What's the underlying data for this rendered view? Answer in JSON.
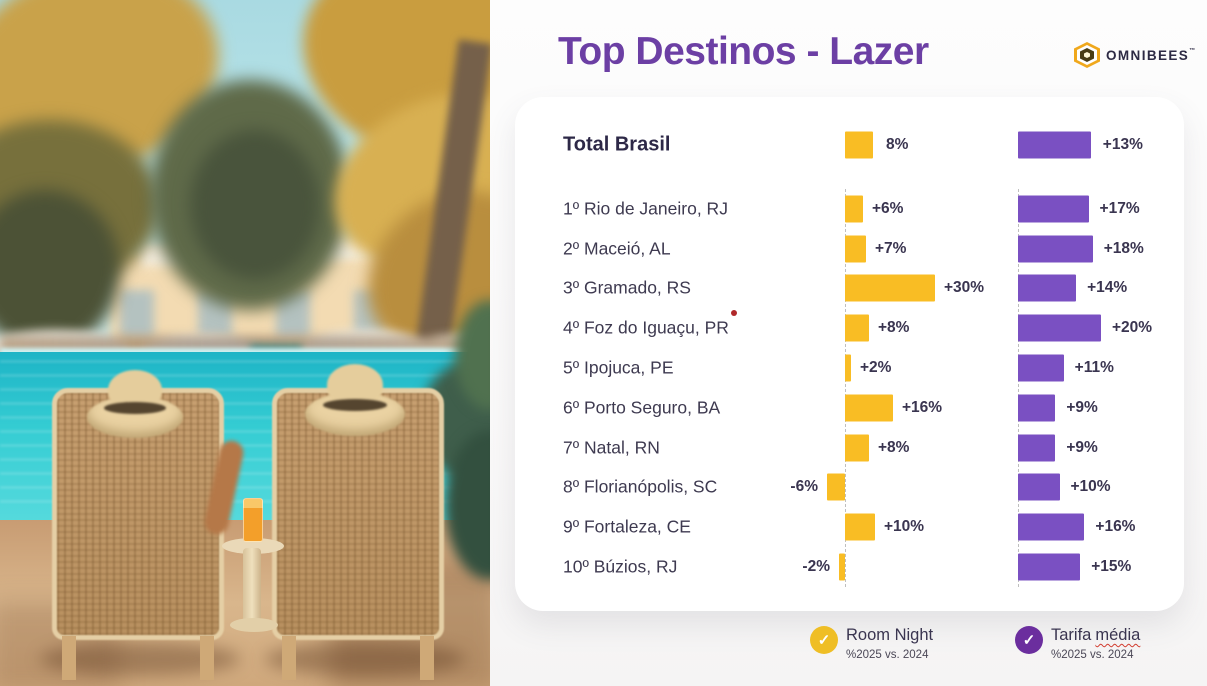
{
  "header": {
    "title_prefix": "Top Destinos - ",
    "title_emphasis": "Lazer",
    "logo_text": "OMNIBEES",
    "logo_tm": "™"
  },
  "chart_data": {
    "type": "bar",
    "orientation": "horizontal",
    "title": "Top Destinos - Lazer",
    "unit": "percent_change_2025_vs_2024",
    "grid": false,
    "legend_position": "bottom",
    "categories": [
      "Total Brasil",
      "1º Rio de Janeiro, RJ",
      "2º Maceió, AL",
      "3º Gramado, RS",
      "4º Foz do Iguaçu, PR",
      "5º Ipojuca, PE",
      "6º Porto Seguro, BA",
      "7º Natal, RN",
      "8º Florianópolis, SC",
      "9º Fortaleza, CE",
      "10º Búzios, RJ"
    ],
    "series": [
      {
        "name": "Room Night",
        "sublabel": "%2025 vs. 2024",
        "color": "#F9BD24",
        "values": [
          8,
          6,
          7,
          30,
          8,
          2,
          16,
          8,
          -6,
          10,
          -2
        ],
        "labels": [
          "8%",
          "+6%",
          "+7%",
          "+30%",
          "+8%",
          "+2%",
          "+16%",
          "+8%",
          "-6%",
          "+10%",
          "-2%"
        ]
      },
      {
        "name": "Tarifa média",
        "sublabel": "%2025 vs. 2024",
        "color": "#7A50C2",
        "values": [
          13,
          17,
          18,
          14,
          20,
          11,
          9,
          9,
          10,
          16,
          15
        ],
        "labels": [
          "+13%",
          "+17%",
          "+18%",
          "+14%",
          "+20%",
          "+11%",
          "+9%",
          "+9%",
          "+10%",
          "+16%",
          "+15%"
        ]
      }
    ]
  },
  "legend": {
    "check_glyph": "✓",
    "items": [
      {
        "label": "Room Night",
        "sublabel": "%2025 vs. 2024",
        "color": "#EFBE25"
      },
      {
        "label": "Tarifa média",
        "label_plain": "Tarifa",
        "label_underlined": "média",
        "sublabel": "%2025 vs. 2024",
        "color": "#6B2E9E"
      }
    ]
  },
  "colors": {
    "title": "#6C3FA4",
    "room_night_bar": "#F9BD24",
    "tarifa_bar": "#7A50C2",
    "dark_text": "#2D2847",
    "row_text": "#3E3A50"
  }
}
